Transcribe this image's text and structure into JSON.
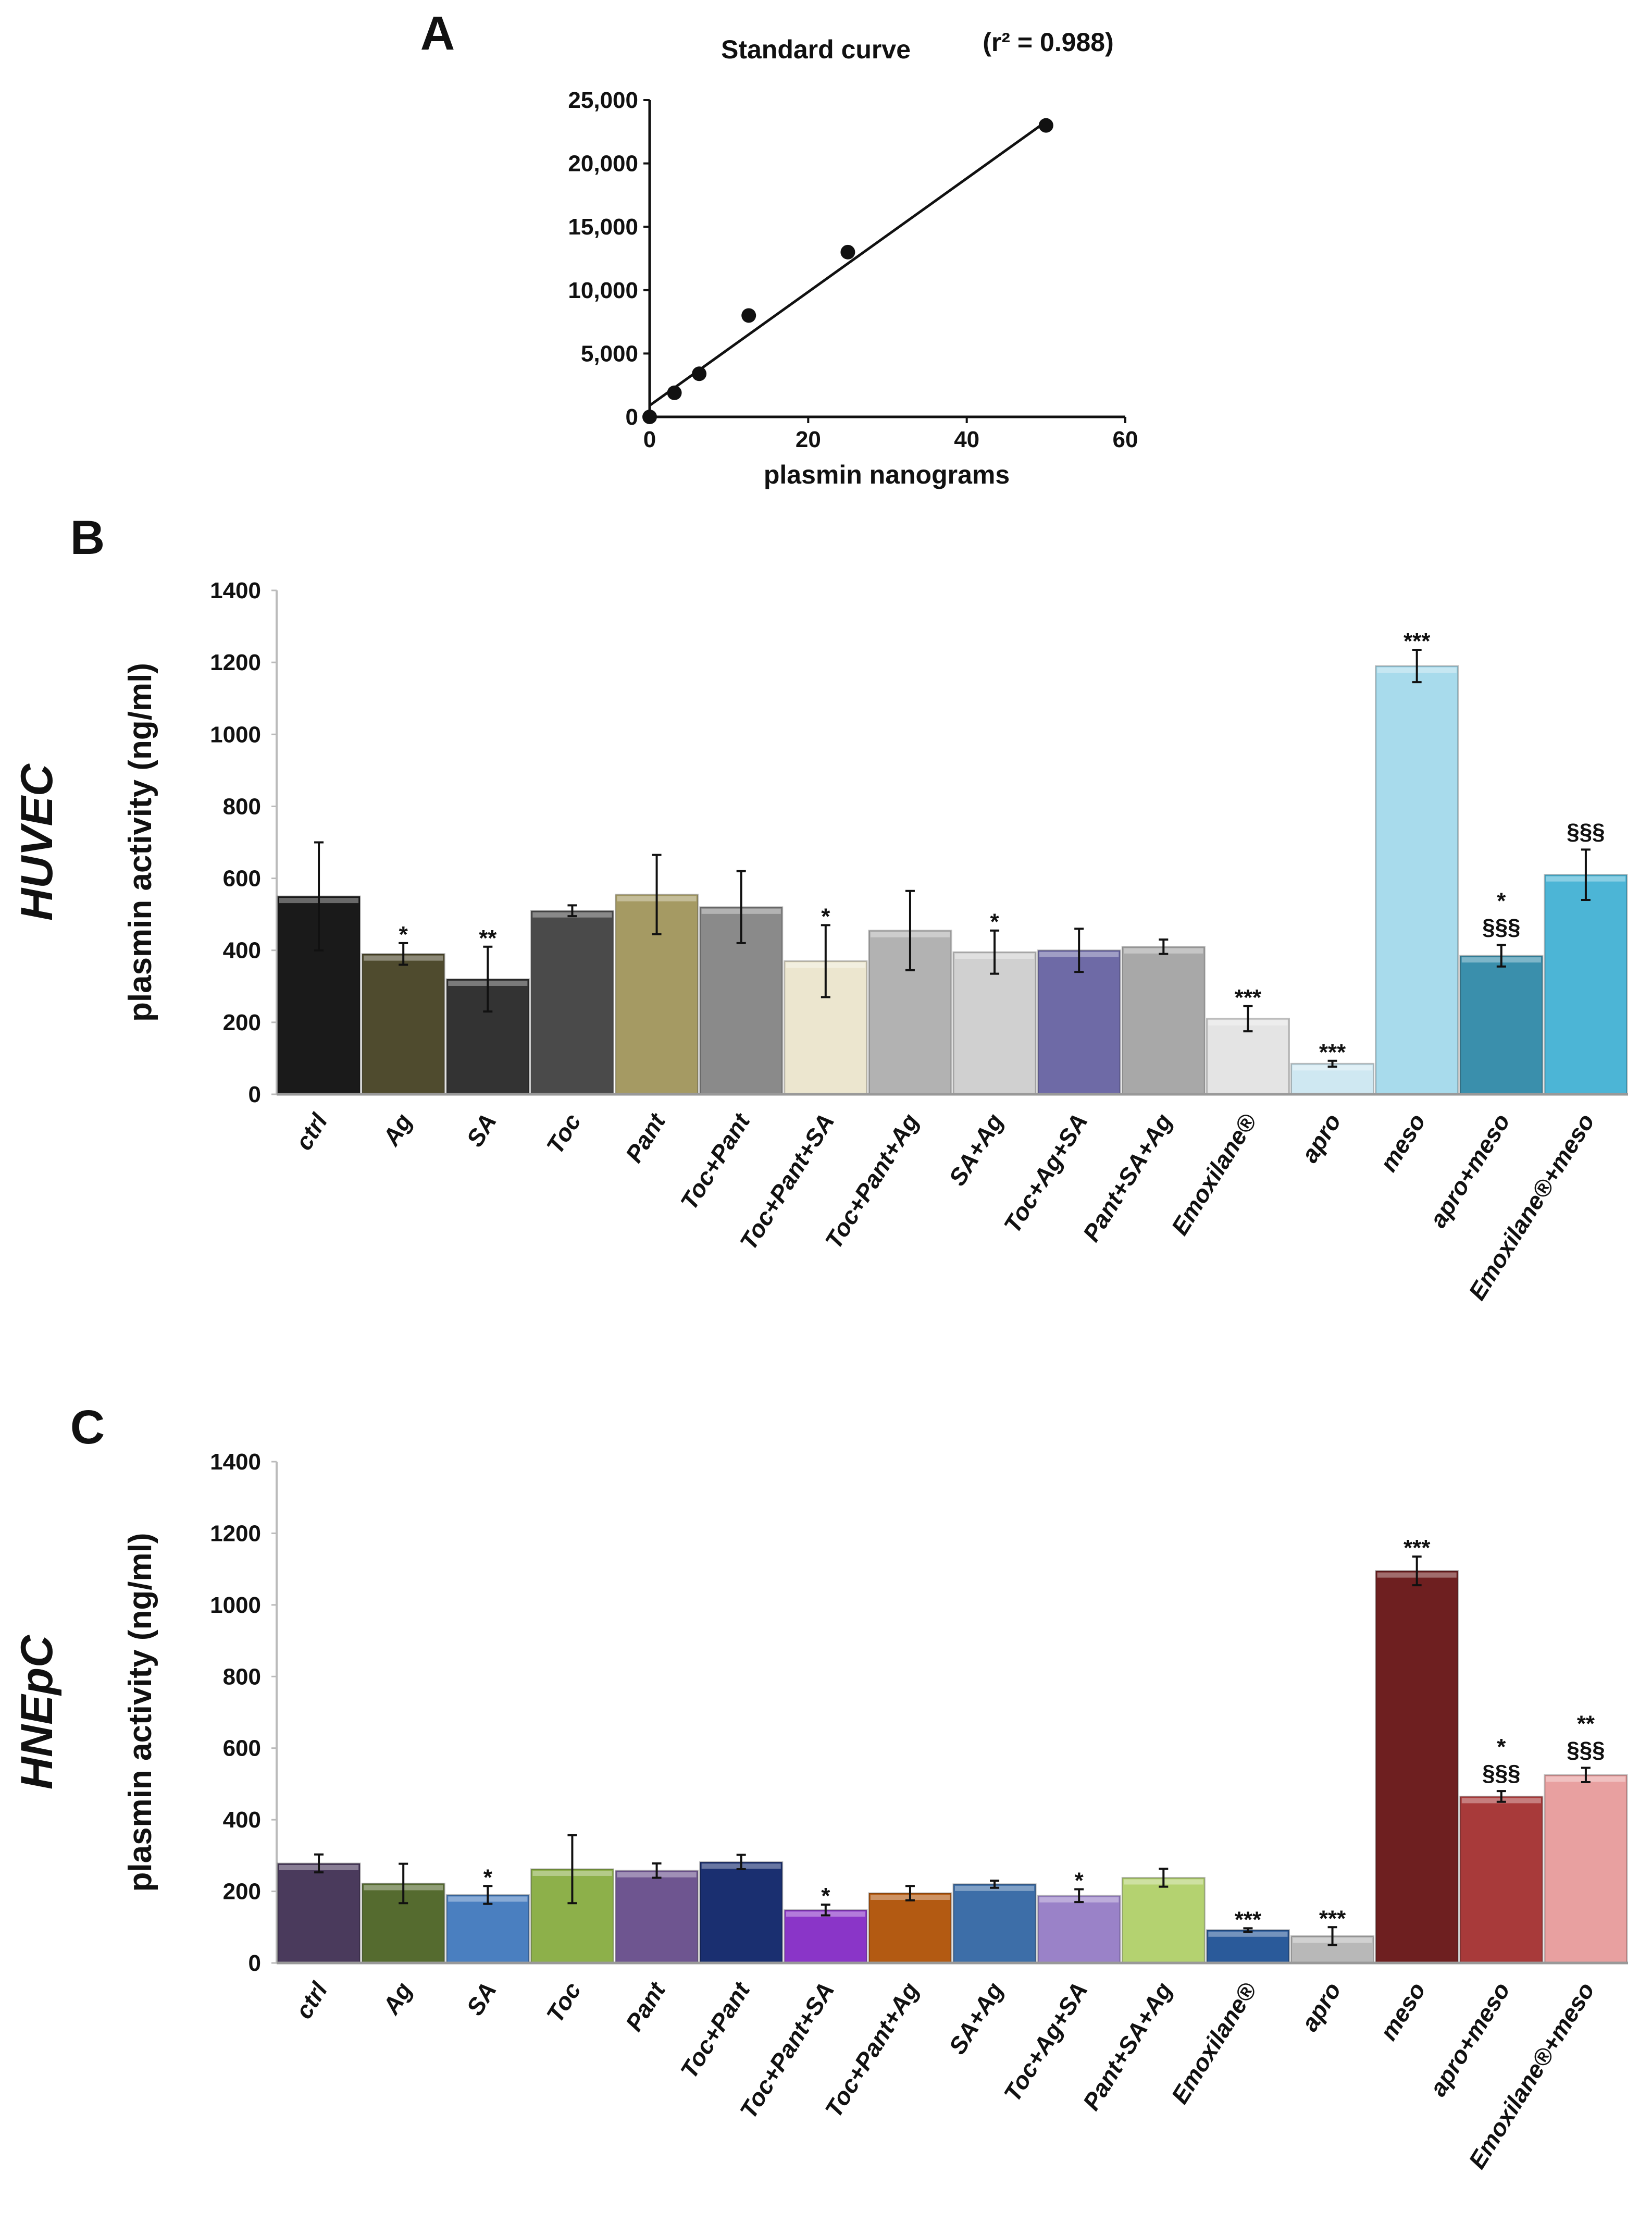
{
  "chart_data": [
    {
      "panel": "A",
      "type": "scatter",
      "title": "Standard curve",
      "annotation": "(r² = 0.988)",
      "xlabel": "plasmin nanograms",
      "ylabel": "",
      "xlim": [
        0,
        60
      ],
      "ylim": [
        0,
        25000
      ],
      "xticks": [
        "0",
        "20",
        "40",
        "60"
      ],
      "yticks": [
        "0",
        "5,000",
        "10,000",
        "15,000",
        "20,000",
        "25,000"
      ],
      "x": [
        0,
        3.125,
        6.25,
        12.5,
        25,
        50
      ],
      "y": [
        0,
        1900,
        3400,
        8000,
        13000,
        23000
      ],
      "fit_line": {
        "x": [
          0,
          50
        ],
        "y": [
          900,
          23300
        ]
      },
      "grid": false
    },
    {
      "panel": "B",
      "type": "bar",
      "cell_line": "HUVEC",
      "ylabel": "plasmin activity (ng/ml)",
      "ylim": [
        0,
        1400
      ],
      "yticks": [
        "0",
        "200",
        "400",
        "600",
        "800",
        "1000",
        "1200",
        "1400"
      ],
      "categories": [
        "ctrl",
        "Ag",
        "SA",
        "Toc",
        "Pant",
        "Toc+Pant",
        "Toc+Pant+SA",
        "Toc+Pant+Ag",
        "SA+Ag",
        "Toc+Ag+SA",
        "Pant+SA+Ag",
        "Emoxilane®",
        "apro",
        "meso",
        "apro+meso",
        "Emoxilane®+meso"
      ],
      "values": [
        550,
        390,
        320,
        510,
        555,
        520,
        370,
        455,
        395,
        400,
        410,
        210,
        85,
        1190,
        385,
        610
      ],
      "errors": [
        150,
        30,
        90,
        15,
        110,
        100,
        100,
        110,
        60,
        60,
        20,
        35,
        8,
        45,
        30,
        70
      ],
      "significance": [
        [],
        [
          "*"
        ],
        [
          "**"
        ],
        [],
        [],
        [],
        [
          "*"
        ],
        [],
        [
          "*"
        ],
        [],
        [],
        [
          "***"
        ],
        [
          "***"
        ],
        [
          "***"
        ],
        [
          "*",
          "§§§"
        ],
        [
          "§§§"
        ]
      ],
      "colors": [
        "#1a1a1a",
        "#4f4b2e",
        "#333333",
        "#4a4a4a",
        "#a59a63",
        "#8a8a8a",
        "#ece6cf",
        "#b2b2b2",
        "#d0d0d0",
        "#6e6aa6",
        "#a8a8a8",
        "#e4e4e4",
        "#cfe8f2",
        "#a8dbec",
        "#3a8fac",
        "#4cb5d6"
      ],
      "grid": false
    },
    {
      "panel": "C",
      "type": "bar",
      "cell_line": "HNEpC",
      "ylabel": "plasmin activity (ng/ml)",
      "ylim": [
        0,
        1400
      ],
      "yticks": [
        "0",
        "200",
        "400",
        "600",
        "800",
        "1000",
        "1200",
        "1400"
      ],
      "categories": [
        "ctrl",
        "Ag",
        "SA",
        "Toc",
        "Pant",
        "Toc+Pant",
        "Toc+Pant+SA",
        "Toc+Pant+Ag",
        "SA+Ag",
        "Toc+Ag+SA",
        "Pant+SA+Ag",
        "Emoxilane®",
        "apro",
        "meso",
        "apro+meso",
        "Emoxilane®+meso"
      ],
      "values": [
        278,
        222,
        190,
        262,
        258,
        282,
        148,
        195,
        220,
        188,
        238,
        92,
        75,
        1095,
        465,
        525
      ],
      "errors": [
        25,
        55,
        25,
        95,
        20,
        20,
        15,
        20,
        10,
        18,
        25,
        5,
        25,
        40,
        15,
        20
      ],
      "significance": [
        [],
        [],
        [
          "*"
        ],
        [],
        [],
        [],
        [
          "*"
        ],
        [],
        [],
        [
          "*"
        ],
        [],
        [
          "***"
        ],
        [
          "***"
        ],
        [
          "***"
        ],
        [
          "*",
          "§§§"
        ],
        [
          "**",
          "§§§"
        ]
      ],
      "colors": [
        "#4a3a5c",
        "#556b2f",
        "#4a7fc0",
        "#8db04a",
        "#6e5590",
        "#1a2f70",
        "#8a35c8",
        "#b35a12",
        "#3d6ea8",
        "#9a82c8",
        "#b4d270",
        "#2a5a9a",
        "#b8b8b8",
        "#6e1f20",
        "#a83a3a",
        "#e8a0a0"
      ],
      "grid": false
    }
  ]
}
